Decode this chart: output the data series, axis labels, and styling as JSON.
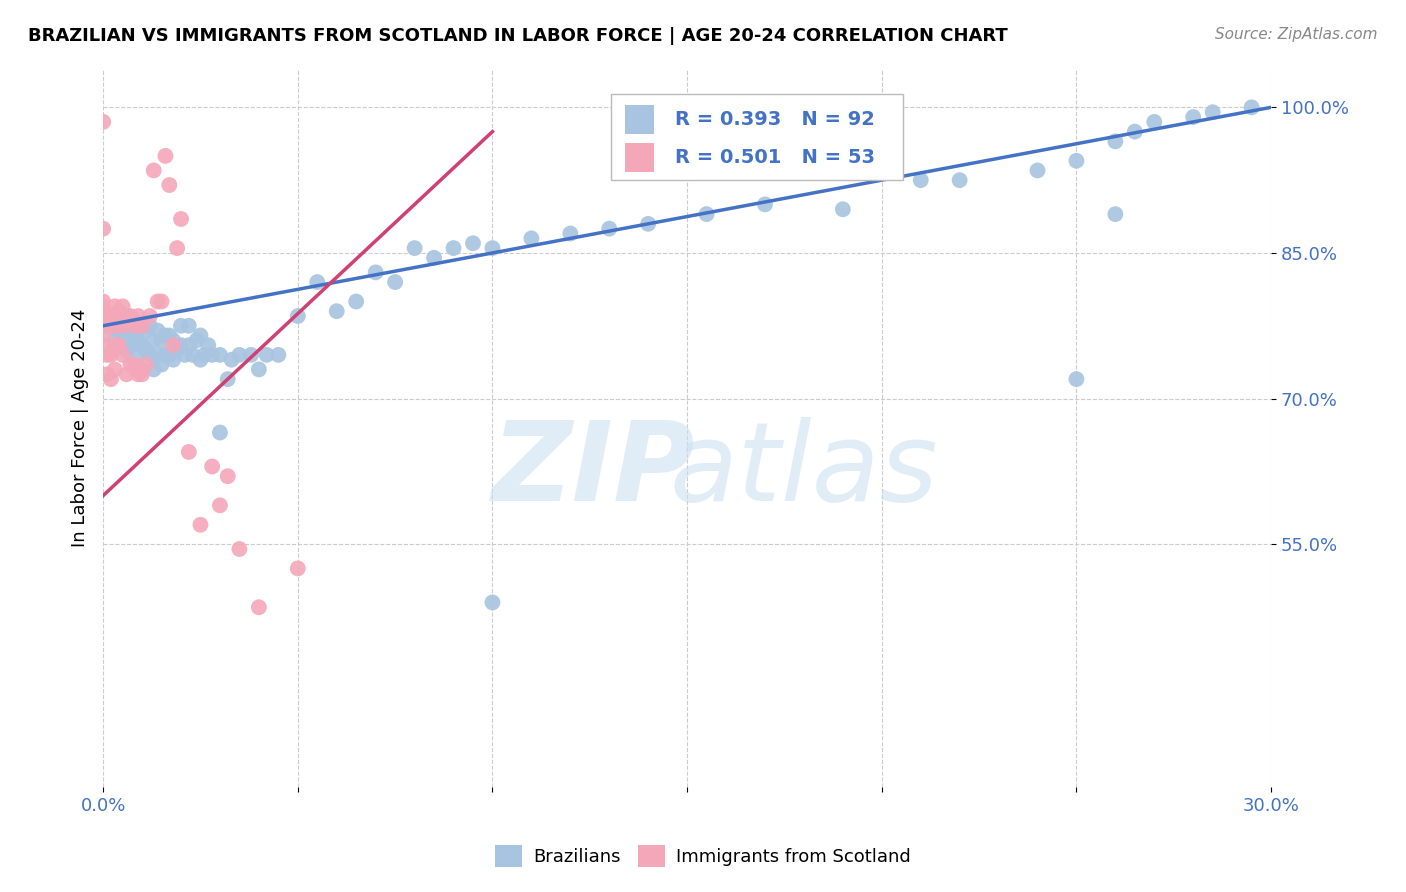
{
  "title": "BRAZILIAN VS IMMIGRANTS FROM SCOTLAND IN LABOR FORCE | AGE 20-24 CORRELATION CHART",
  "source": "Source: ZipAtlas.com",
  "ylabel": "In Labor Force | Age 20-24",
  "xlim": [
    0.0,
    0.3
  ],
  "ylim": [
    0.3,
    1.04
  ],
  "yticks": [
    1.0,
    0.85,
    0.7,
    0.55
  ],
  "ytick_labels": [
    "100.0%",
    "85.0%",
    "70.0%",
    "55.0%"
  ],
  "xticks": [
    0.0,
    0.05,
    0.1,
    0.15,
    0.2,
    0.25,
    0.3
  ],
  "xtick_labels": [
    "0.0%",
    "",
    "",
    "",
    "",
    "",
    "30.0%"
  ],
  "blue_R": 0.393,
  "blue_N": 92,
  "pink_R": 0.501,
  "pink_N": 53,
  "blue_color": "#a8c4e0",
  "pink_color": "#f4a7b9",
  "blue_line_color": "#4472c4",
  "pink_line_color": "#d04070",
  "legend_R_N_color": "#4472c4",
  "blue_scatter_x": [
    0.001,
    0.001,
    0.002,
    0.003,
    0.003,
    0.004,
    0.004,
    0.005,
    0.005,
    0.005,
    0.006,
    0.006,
    0.006,
    0.007,
    0.007,
    0.008,
    0.008,
    0.009,
    0.009,
    0.009,
    0.01,
    0.01,
    0.01,
    0.011,
    0.011,
    0.012,
    0.012,
    0.013,
    0.013,
    0.014,
    0.014,
    0.015,
    0.015,
    0.016,
    0.016,
    0.017,
    0.017,
    0.018,
    0.018,
    0.019,
    0.02,
    0.02,
    0.021,
    0.022,
    0.022,
    0.023,
    0.024,
    0.025,
    0.025,
    0.026,
    0.027,
    0.028,
    0.03,
    0.032,
    0.033,
    0.035,
    0.038,
    0.04,
    0.042,
    0.045,
    0.05,
    0.055,
    0.06,
    0.065,
    0.07,
    0.075,
    0.08,
    0.085,
    0.09,
    0.095,
    0.1,
    0.11,
    0.12,
    0.13,
    0.14,
    0.155,
    0.17,
    0.19,
    0.21,
    0.22,
    0.24,
    0.25,
    0.26,
    0.265,
    0.27,
    0.28,
    0.285,
    0.295,
    0.03,
    0.1,
    0.26,
    0.25
  ],
  "blue_scatter_y": [
    0.775,
    0.78,
    0.775,
    0.76,
    0.78,
    0.77,
    0.79,
    0.755,
    0.77,
    0.785,
    0.75,
    0.77,
    0.785,
    0.755,
    0.775,
    0.76,
    0.78,
    0.745,
    0.76,
    0.775,
    0.73,
    0.755,
    0.775,
    0.75,
    0.77,
    0.745,
    0.775,
    0.73,
    0.76,
    0.745,
    0.77,
    0.735,
    0.76,
    0.745,
    0.765,
    0.745,
    0.765,
    0.74,
    0.76,
    0.75,
    0.755,
    0.775,
    0.745,
    0.755,
    0.775,
    0.745,
    0.76,
    0.74,
    0.765,
    0.745,
    0.755,
    0.745,
    0.745,
    0.72,
    0.74,
    0.745,
    0.745,
    0.73,
    0.745,
    0.745,
    0.785,
    0.82,
    0.79,
    0.8,
    0.83,
    0.82,
    0.855,
    0.845,
    0.855,
    0.86,
    0.855,
    0.865,
    0.87,
    0.875,
    0.88,
    0.89,
    0.9,
    0.895,
    0.925,
    0.925,
    0.935,
    0.945,
    0.965,
    0.975,
    0.985,
    0.99,
    0.995,
    1.0,
    0.665,
    0.49,
    0.89,
    0.72
  ],
  "pink_scatter_x": [
    0.0,
    0.0,
    0.0,
    0.0,
    0.0,
    0.0,
    0.0,
    0.0,
    0.0,
    0.0,
    0.001,
    0.001,
    0.001,
    0.002,
    0.002,
    0.002,
    0.003,
    0.003,
    0.003,
    0.003,
    0.004,
    0.004,
    0.005,
    0.005,
    0.005,
    0.006,
    0.006,
    0.007,
    0.007,
    0.008,
    0.008,
    0.009,
    0.009,
    0.01,
    0.01,
    0.011,
    0.012,
    0.013,
    0.014,
    0.015,
    0.016,
    0.017,
    0.018,
    0.019,
    0.02,
    0.022,
    0.025,
    0.028,
    0.03,
    0.032,
    0.035,
    0.04,
    0.05
  ],
  "pink_scatter_y": [
    0.755,
    0.765,
    0.775,
    0.78,
    0.785,
    0.79,
    0.795,
    0.8,
    0.875,
    0.985,
    0.725,
    0.745,
    0.775,
    0.72,
    0.745,
    0.785,
    0.73,
    0.755,
    0.775,
    0.795,
    0.755,
    0.785,
    0.745,
    0.775,
    0.795,
    0.725,
    0.78,
    0.735,
    0.785,
    0.735,
    0.775,
    0.725,
    0.785,
    0.725,
    0.775,
    0.735,
    0.785,
    0.935,
    0.8,
    0.8,
    0.95,
    0.92,
    0.755,
    0.855,
    0.885,
    0.645,
    0.57,
    0.63,
    0.59,
    0.62,
    0.545,
    0.485,
    0.525
  ]
}
